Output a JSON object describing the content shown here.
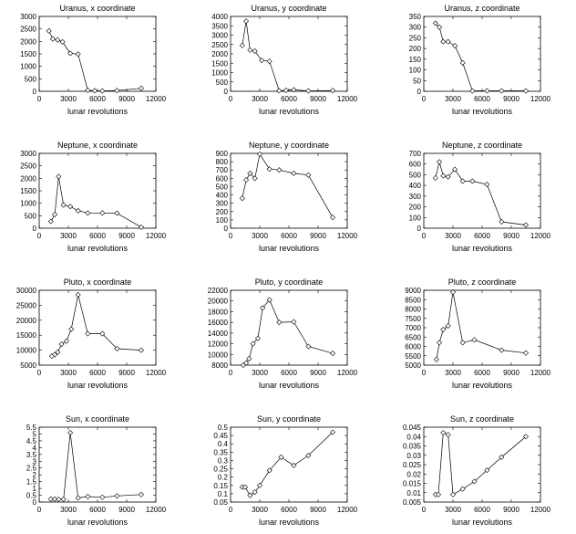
{
  "chart_data": [
    {
      "type": "line",
      "title": "Uranus, x coordinate",
      "xlabel": "lunar revolutions",
      "ylabel": "",
      "xlim": [
        0,
        12000
      ],
      "ylim": [
        0,
        3000
      ],
      "xticks": [
        "0",
        "3000",
        "6000",
        "9000",
        "12000"
      ],
      "yticks": [
        "0",
        "500",
        "1000",
        "1500",
        "2000",
        "2500",
        "3000"
      ],
      "x": [
        1000,
        1400,
        1900,
        2400,
        3200,
        4000,
        5000,
        5700,
        6500,
        8000,
        10500
      ],
      "y": [
        2420,
        2100,
        2060,
        1980,
        1520,
        1490,
        40,
        20,
        15,
        30,
        120
      ]
    },
    {
      "type": "line",
      "title": "Uranus, y coordinate",
      "xlabel": "lunar revolutions",
      "ylabel": "",
      "xlim": [
        0,
        12000
      ],
      "ylim": [
        0,
        4000
      ],
      "xticks": [
        "0",
        "3000",
        "6000",
        "9000",
        "12000"
      ],
      "yticks": [
        "0",
        "500",
        "1000",
        "1500",
        "2000",
        "2500",
        "3000",
        "3500",
        "4000"
      ],
      "x": [
        1200,
        1600,
        2000,
        2500,
        3200,
        4000,
        5000,
        5700,
        6500,
        8000,
        10500
      ],
      "y": [
        2450,
        3750,
        2200,
        2150,
        1650,
        1600,
        30,
        50,
        80,
        20,
        40
      ]
    },
    {
      "type": "line",
      "title": "Uranus, z coordinate",
      "xlabel": "lunar revolutions",
      "ylabel": "",
      "xlim": [
        0,
        12000
      ],
      "ylim": [
        0,
        350
      ],
      "xticks": [
        "0",
        "3000",
        "6000",
        "9000",
        "12000"
      ],
      "yticks": [
        "0",
        "50",
        "100",
        "150",
        "200",
        "250",
        "300",
        "350"
      ],
      "x": [
        1200,
        1600,
        2000,
        2500,
        3200,
        4000,
        5000,
        6500,
        8000,
        10500
      ],
      "y": [
        318,
        300,
        232,
        232,
        213,
        133,
        2,
        2,
        2,
        2
      ]
    },
    {
      "type": "line",
      "title": "Neptune, x coordinate",
      "xlabel": "lunar revolutions",
      "ylabel": "",
      "xlim": [
        0,
        12000
      ],
      "ylim": [
        0,
        3000
      ],
      "xticks": [
        "0",
        "3000",
        "6000",
        "9000",
        "12000"
      ],
      "yticks": [
        "0",
        "500",
        "1000",
        "1500",
        "2000",
        "2500",
        "3000"
      ],
      "x": [
        1200,
        1600,
        2000,
        2500,
        3200,
        4000,
        5000,
        6500,
        8000,
        10500
      ],
      "y": [
        270,
        550,
        2070,
        930,
        870,
        700,
        610,
        610,
        600,
        40
      ]
    },
    {
      "type": "line",
      "title": "Neptune, y coordinate",
      "xlabel": "lunar revolutions",
      "ylabel": "",
      "xlim": [
        0,
        12000
      ],
      "ylim": [
        0,
        900
      ],
      "xticks": [
        "0",
        "3000",
        "6000",
        "9000",
        "12000"
      ],
      "yticks": [
        "0",
        "100",
        "200",
        "300",
        "400",
        "500",
        "600",
        "700",
        "800",
        "900"
      ],
      "x": [
        1200,
        1600,
        2000,
        2500,
        3000,
        4000,
        5000,
        6500,
        8000,
        10500
      ],
      "y": [
        360,
        580,
        660,
        600,
        890,
        710,
        700,
        660,
        640,
        130
      ]
    },
    {
      "type": "line",
      "title": "Neptune, z coordinate",
      "xlabel": "lunar revolutions",
      "ylabel": "",
      "xlim": [
        0,
        12000
      ],
      "ylim": [
        0,
        700
      ],
      "xticks": [
        "0",
        "3000",
        "6000",
        "9000",
        "12000"
      ],
      "yticks": [
        "0",
        "100",
        "200",
        "300",
        "400",
        "500",
        "600",
        "700"
      ],
      "x": [
        1200,
        1600,
        2000,
        2500,
        3200,
        4000,
        5000,
        6500,
        8000,
        10500
      ],
      "y": [
        470,
        620,
        490,
        480,
        550,
        440,
        440,
        410,
        60,
        30
      ]
    },
    {
      "type": "line",
      "title": "Pluto, x coordinate",
      "xlabel": "lunar revolutions",
      "ylabel": "",
      "xlim": [
        0,
        12000
      ],
      "ylim": [
        5000,
        30000
      ],
      "xticks": [
        "0",
        "3000",
        "6000",
        "9000",
        "12000"
      ],
      "yticks": [
        "5000",
        "10000",
        "15000",
        "20000",
        "25000",
        "30000"
      ],
      "x": [
        1300,
        1600,
        1900,
        2300,
        2800,
        3300,
        4000,
        5000,
        6500,
        8000,
        10500
      ],
      "y": [
        8000,
        8500,
        9300,
        12000,
        13000,
        17000,
        28500,
        15500,
        15500,
        10500,
        10000
      ]
    },
    {
      "type": "line",
      "title": "Pluto, y coordinate",
      "xlabel": "lunar revolutions",
      "ylabel": "",
      "xlim": [
        0,
        12000
      ],
      "ylim": [
        8000,
        22000
      ],
      "xticks": [
        "0",
        "3000",
        "6000",
        "9000",
        "12000"
      ],
      "yticks": [
        "8000",
        "10000",
        "12000",
        "14000",
        "16000",
        "18000",
        "20000",
        "22000"
      ],
      "x": [
        1300,
        1600,
        1900,
        2300,
        2800,
        3300,
        4000,
        5000,
        6500,
        8000,
        10500
      ],
      "y": [
        8000,
        8400,
        9200,
        12000,
        13000,
        18700,
        20200,
        16000,
        16100,
        11500,
        10200
      ]
    },
    {
      "type": "line",
      "title": "Pluto, z coordinate",
      "xlabel": "lunar revolutions",
      "ylabel": "",
      "xlim": [
        0,
        12000
      ],
      "ylim": [
        5000,
        9000
      ],
      "xticks": [
        "0",
        "3000",
        "6000",
        "9000",
        "12000"
      ],
      "yticks": [
        "5000",
        "5500",
        "6000",
        "6500",
        "7000",
        "7500",
        "8000",
        "8500",
        "9000"
      ],
      "x": [
        1300,
        1600,
        2000,
        2500,
        3000,
        4000,
        5200,
        8000,
        10500
      ],
      "y": [
        5300,
        6200,
        6900,
        7100,
        8900,
        6200,
        6350,
        5800,
        5650
      ]
    },
    {
      "type": "line",
      "title": "Sun, x coordinate",
      "xlabel": "lunar revolutions",
      "ylabel": "",
      "xlim": [
        0,
        12000
      ],
      "ylim": [
        0,
        5.5
      ],
      "xticks": [
        "0",
        "3000",
        "6000",
        "9000",
        "12000"
      ],
      "yticks": [
        "0",
        "0.5",
        "1",
        "1.5",
        "2",
        "2.5",
        "3",
        "3.5",
        "4",
        "4.5",
        "5",
        "5.5"
      ],
      "x": [
        1200,
        1600,
        2000,
        2500,
        3200,
        4000,
        5000,
        6500,
        8000,
        10500
      ],
      "y": [
        0.22,
        0.22,
        0.2,
        0.2,
        5.1,
        0.3,
        0.4,
        0.35,
        0.45,
        0.55
      ]
    },
    {
      "type": "line",
      "title": "Sun, y coordinate",
      "xlabel": "lunar revolutions",
      "ylabel": "",
      "xlim": [
        0,
        12000
      ],
      "ylim": [
        0.05,
        0.5
      ],
      "xticks": [
        "0",
        "3000",
        "6000",
        "9000",
        "12000"
      ],
      "yticks": [
        "0.05",
        "0.1",
        "0.15",
        "0.2",
        "0.25",
        "0.3",
        "0.35",
        "0.4",
        "0.45",
        "0.5"
      ],
      "x": [
        1200,
        1500,
        2000,
        2500,
        3000,
        4000,
        5200,
        6500,
        8000,
        10500
      ],
      "y": [
        0.14,
        0.14,
        0.09,
        0.11,
        0.15,
        0.24,
        0.32,
        0.27,
        0.33,
        0.47
      ]
    },
    {
      "type": "line",
      "title": "Sun, z coordinate",
      "xlabel": "lunar revolutions",
      "ylabel": "",
      "xlim": [
        0,
        12000
      ],
      "ylim": [
        0.005,
        0.045
      ],
      "xticks": [
        "0",
        "3000",
        "6000",
        "9000",
        "12000"
      ],
      "yticks": [
        "0.005",
        "0.01",
        "0.015",
        "0.02",
        "0.025",
        "0.03",
        "0.035",
        "0.04",
        "0.045"
      ],
      "x": [
        1200,
        1500,
        2000,
        2500,
        3000,
        4000,
        5200,
        6500,
        8000,
        10500
      ],
      "y": [
        0.009,
        0.009,
        0.042,
        0.041,
        0.009,
        0.012,
        0.016,
        0.022,
        0.029,
        0.04
      ]
    }
  ]
}
